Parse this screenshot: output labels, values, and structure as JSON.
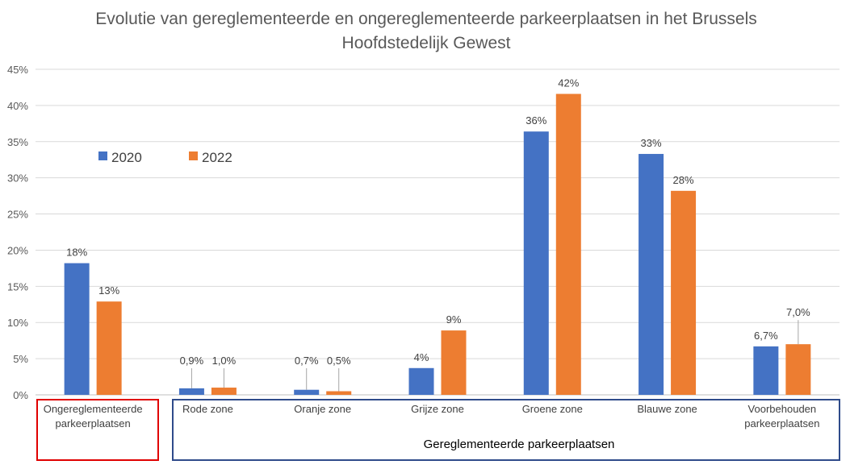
{
  "chart_data": {
    "type": "bar",
    "title_line1": "Evolutie van gereglementeerde en ongereglementeerde parkeerplaatsen in het Brussels",
    "title_line2": "Hoofdstedelijk Gewest",
    "categories": [
      [
        "Ongereglementeerde",
        "parkeerplaatsen"
      ],
      [
        "Rode zone"
      ],
      [
        "Oranje zone"
      ],
      [
        "Grijze zone"
      ],
      [
        "Groene zone"
      ],
      [
        "Blauwe zone"
      ],
      [
        "Voorbehouden",
        "parkeerplaatsen"
      ]
    ],
    "series": [
      {
        "name": "2020",
        "color": "#4472C4",
        "values": [
          18.2,
          0.9,
          0.7,
          3.7,
          36.4,
          33.3,
          6.7
        ],
        "labels": [
          "18%",
          "0,9%",
          "0,7%",
          "4%",
          "36%",
          "33%",
          "6,7%"
        ]
      },
      {
        "name": "2022",
        "color": "#ED7D31",
        "values": [
          12.9,
          1.0,
          0.5,
          8.9,
          41.6,
          28.2,
          7.0
        ],
        "labels": [
          "13%",
          "1,0%",
          "0,5%",
          "9%",
          "42%",
          "28%",
          "7,0%"
        ]
      }
    ],
    "ylim": [
      0,
      45
    ],
    "yticks": [
      0,
      5,
      10,
      15,
      20,
      25,
      30,
      35,
      40,
      45
    ],
    "ytick_labels": [
      "0%",
      "5%",
      "10%",
      "15%",
      "20%",
      "25%",
      "30%",
      "35%",
      "40%",
      "45%"
    ],
    "legend_position": "top-left",
    "group_label": "Gereglementeerde parkeerplaatsen",
    "group_box_colors": {
      "unregulated": "#E00000",
      "regulated": "#2F4B8A"
    },
    "gridlines": true
  }
}
